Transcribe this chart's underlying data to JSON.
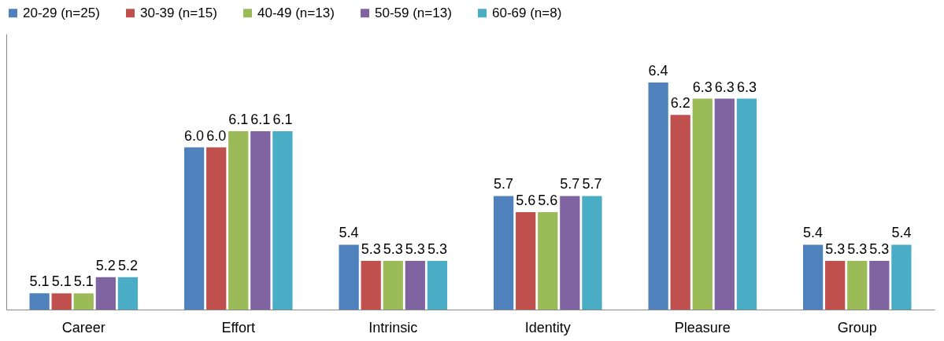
{
  "chart_data": {
    "type": "bar",
    "categories": [
      "Career",
      "Effort",
      "Intrinsic",
      "Identity",
      "Pleasure",
      "Group"
    ],
    "series": [
      {
        "name": "20-29 (n=25)",
        "color": "#4f81bd",
        "values": [
          5.1,
          6.0,
          5.4,
          5.7,
          6.4,
          5.4
        ],
        "value_labels": [
          "5.1",
          "6.0",
          "5.4",
          "5.7",
          "6.4",
          "5.4"
        ]
      },
      {
        "name": "30-39 (n=15)",
        "color": "#c0504d",
        "values": [
          5.1,
          6.0,
          5.3,
          5.6,
          6.2,
          5.3
        ],
        "value_labels": [
          "5.1",
          "6.0",
          "5.3",
          "5.6",
          "6.2",
          "5.3"
        ]
      },
      {
        "name": "40-49 (n=13)",
        "color": "#9bbb59",
        "values": [
          5.1,
          6.1,
          5.3,
          5.6,
          6.3,
          5.3
        ],
        "value_labels": [
          "5.1",
          "6.1",
          "5.3",
          "5.6",
          "6.3",
          "5.3"
        ]
      },
      {
        "name": "50-59 (n=13)",
        "color": "#8064a2",
        "values": [
          5.2,
          6.1,
          5.3,
          5.7,
          6.3,
          5.3
        ],
        "value_labels": [
          "5.2",
          "6.1",
          "5.3",
          "5.7",
          "6.3",
          "5.3"
        ]
      },
      {
        "name": "60-69 (n=8)",
        "color": "#4bacc6",
        "values": [
          5.2,
          6.1,
          5.3,
          5.7,
          6.3,
          5.4
        ],
        "value_labels": [
          "5.2",
          "6.1",
          "5.3",
          "5.7",
          "6.3",
          "5.4"
        ]
      }
    ],
    "ylim": [
      5.0,
      6.7
    ],
    "tick_labels": "x",
    "grid": false,
    "legend": "top left"
  }
}
